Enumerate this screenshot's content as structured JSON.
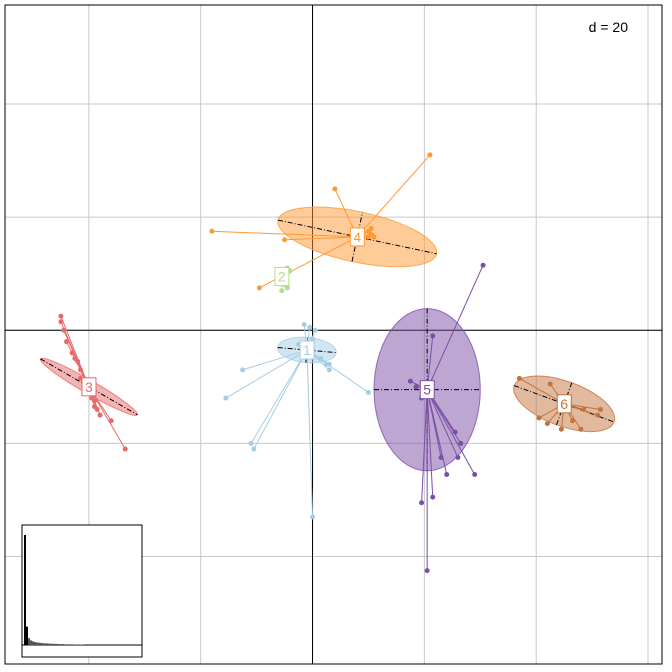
{
  "chart_data": {
    "type": "scatter",
    "title": "",
    "xlabel": "",
    "ylabel": "",
    "grid": true,
    "xlim": [
      -110,
      125
    ],
    "ylim": [
      -118,
      115
    ],
    "scale_label": "d = 20",
    "groups": [
      {
        "name": "1",
        "color": "#a6cee3",
        "center": [
          -2,
          -7
        ],
        "ellipse": {
          "rx": 4.5,
          "ry": 10.5,
          "angle": -85
        },
        "points": [
          [
            0,
            -3
          ],
          [
            -25,
            -14
          ],
          [
            -31,
            -24
          ],
          [
            -22,
            -40
          ],
          [
            -21,
            -42
          ],
          [
            0,
            -66
          ],
          [
            20,
            -22
          ],
          [
            5,
            -12
          ],
          [
            6,
            -14
          ],
          [
            6,
            -12
          ],
          [
            -3,
            2
          ],
          [
            1,
            0
          ],
          [
            -5,
            -5
          ],
          [
            3,
            -10
          ],
          [
            -1,
            1
          ]
        ]
      },
      {
        "name": "2",
        "color": "#b2df8a",
        "center": [
          -11,
          19
        ],
        "ellipse": {
          "rx": 1.2,
          "ry": 2.3,
          "angle": -90
        },
        "points": [
          [
            -9,
            22
          ],
          [
            -9,
            20
          ],
          [
            -10,
            17
          ],
          [
            -11,
            14
          ],
          [
            -9,
            15
          ],
          [
            -10,
            16
          ],
          [
            -8,
            21
          ]
        ]
      },
      {
        "name": "3",
        "color": "#e96a6a",
        "center": [
          -80,
          -20
        ],
        "ellipse": {
          "rx": 2.4,
          "ry": 20,
          "angle": -60
        },
        "points": [
          [
            -90,
            5
          ],
          [
            -90,
            3
          ],
          [
            -89,
            0
          ],
          [
            -88,
            -4
          ],
          [
            -86,
            -8
          ],
          [
            -84,
            -11
          ],
          [
            -83,
            -14
          ],
          [
            -80,
            -20
          ],
          [
            -78,
            -25
          ],
          [
            -77,
            -28
          ],
          [
            -76,
            -30
          ],
          [
            -72,
            -32
          ],
          [
            -67,
            -42
          ],
          [
            -79,
            -24
          ],
          [
            -78,
            -27
          ],
          [
            -81,
            -22
          ],
          [
            -85,
            -10
          ],
          [
            -83,
            -17
          ]
        ]
      },
      {
        "name": "4",
        "color": "#ff9933",
        "center": [
          16,
          33
        ],
        "ellipse": {
          "rx": 9,
          "ry": 29,
          "angle": -78
        },
        "points": [
          [
            42,
            62
          ],
          [
            8,
            50
          ],
          [
            -36,
            35
          ],
          [
            -10,
            32
          ],
          [
            -19,
            15
          ],
          [
            20,
            33
          ],
          [
            21,
            34
          ],
          [
            20,
            35
          ],
          [
            21,
            36
          ],
          [
            22,
            33
          ]
        ]
      },
      {
        "name": "5",
        "color": "#7c4ea6",
        "center": [
          41,
          -21
        ],
        "ellipse": {
          "rx": 19,
          "ry": 29,
          "angle": 0
        },
        "points": [
          [
            61,
            23
          ],
          [
            43,
            -2
          ],
          [
            35,
            -18
          ],
          [
            37,
            -20
          ],
          [
            39,
            -24
          ],
          [
            51,
            -36
          ],
          [
            53,
            -40
          ],
          [
            46,
            -45
          ],
          [
            52,
            -45
          ],
          [
            48,
            -51
          ],
          [
            58,
            -51
          ],
          [
            43,
            -59
          ],
          [
            39,
            -61
          ],
          [
            41,
            -85
          ]
        ]
      },
      {
        "name": "6",
        "color": "#c4733d",
        "center": [
          90,
          -26
        ],
        "ellipse": {
          "rx": 8,
          "ry": 19,
          "angle": -70
        },
        "points": [
          [
            74,
            -17
          ],
          [
            85,
            -19
          ],
          [
            97,
            -28
          ],
          [
            103,
            -28
          ],
          [
            102,
            -30
          ],
          [
            93,
            -32
          ],
          [
            89,
            -35
          ],
          [
            84,
            -33
          ],
          [
            96,
            -35
          ],
          [
            81,
            -31
          ]
        ]
      }
    ],
    "eigenvalues": [
      48,
      8,
      3,
      2,
      1.6,
      1.3,
      1.1,
      1,
      0.9,
      0.8,
      0.7,
      0.7,
      0.6,
      0.6,
      0.5,
      0.5,
      0.5,
      0.4,
      0.4,
      0.4,
      0.3,
      0.3,
      0.3,
      0.3,
      0.3,
      0.2,
      0.2,
      0.2,
      0.2,
      0.2
    ]
  }
}
